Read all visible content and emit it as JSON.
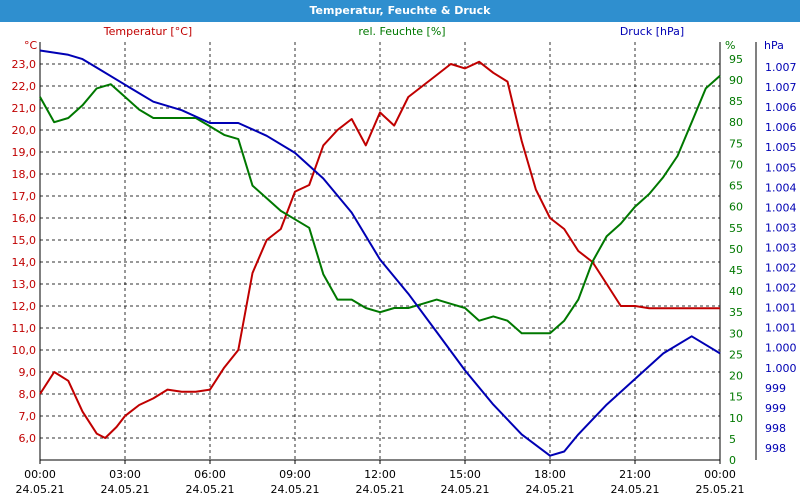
{
  "window": {
    "title": "Temperatur, Feuchte & Druck"
  },
  "chart_data": {
    "type": "line",
    "title": "Temperatur, Feuchte & Druck",
    "x_axis": {
      "ticks": [
        {
          "time": "00:00",
          "date": "24.05.21"
        },
        {
          "time": "03:00",
          "date": "24.05.21"
        },
        {
          "time": "06:00",
          "date": "24.05.21"
        },
        {
          "time": "09:00",
          "date": "24.05.21"
        },
        {
          "time": "12:00",
          "date": "24.05.21"
        },
        {
          "time": "15:00",
          "date": "24.05.21"
        },
        {
          "time": "18:00",
          "date": "24.05.21"
        },
        {
          "time": "21:00",
          "date": "24.05.21"
        },
        {
          "time": "00:00",
          "date": "25.05.21"
        }
      ],
      "range_hours": [
        0,
        24
      ]
    },
    "axes": {
      "temperature": {
        "unit": "°C",
        "label": "Temperatur [°C]",
        "range": [
          5.0,
          24.0
        ],
        "ticks": [
          "6,0",
          "7,0",
          "8,0",
          "9,0",
          "10,0",
          "11,0",
          "12,0",
          "13,0",
          "14,0",
          "15,0",
          "16,0",
          "17,0",
          "18,0",
          "19,0",
          "20,0",
          "21,0",
          "22,0",
          "23,0"
        ]
      },
      "humidity": {
        "unit": "%",
        "label": "rel. Feuchte [%]",
        "range": [
          0,
          99
        ],
        "ticks": [
          "0",
          "5",
          "10",
          "15",
          "20",
          "25",
          "30",
          "35",
          "40",
          "45",
          "50",
          "55",
          "60",
          "65",
          "70",
          "75",
          "80",
          "85",
          "90",
          "95"
        ]
      },
      "pressure": {
        "unit": "hPa",
        "label": "Druck [hPa]",
        "range": [
          997.6,
          1007.4
        ],
        "ticks": [
          "998",
          "998",
          "999",
          "999",
          "1.000",
          "1.000",
          "1.001",
          "1.001",
          "1.002",
          "1.002",
          "1.003",
          "1.003",
          "1.004",
          "1.004",
          "1.005",
          "1.005",
          "1.006",
          "1.006",
          "1.007",
          "1.007"
        ]
      }
    },
    "colors": {
      "temperature": "#c00000",
      "humidity": "#007800",
      "pressure": "#0000b4"
    },
    "grid": true,
    "series": [
      {
        "name": "Temperatur [°C]",
        "axis": "temperature",
        "x": [
          0,
          0.5,
          1,
          1.5,
          2,
          2.3,
          2.7,
          3,
          3.5,
          4,
          4.5,
          5,
          5.5,
          6,
          6.5,
          7,
          7.5,
          8,
          8.5,
          9,
          9.5,
          10,
          10.5,
          11,
          11.5,
          12,
          12.5,
          13,
          13.5,
          14,
          14.5,
          15,
          15.5,
          16,
          16.5,
          17,
          17.5,
          18,
          18.5,
          19,
          19.5,
          20,
          20.5,
          21,
          21.5,
          22,
          22.5,
          23,
          23.5,
          24
        ],
        "y": [
          8.0,
          9.0,
          8.6,
          7.2,
          6.2,
          6.0,
          6.5,
          7.0,
          7.5,
          7.8,
          8.2,
          8.1,
          8.1,
          8.2,
          9.2,
          10.0,
          13.5,
          15.0,
          15.5,
          17.2,
          17.5,
          19.3,
          20.0,
          20.5,
          19.3,
          20.8,
          20.2,
          21.5,
          22.0,
          22.5,
          23.0,
          22.8,
          23.1,
          22.6,
          22.2,
          19.5,
          17.3,
          16.0,
          15.5,
          14.5,
          14.0,
          13.0,
          12.0,
          12.0,
          11.9,
          11.9,
          11.9,
          11.9,
          11.9,
          11.9
        ]
      },
      {
        "name": "rel. Feuchte [%]",
        "axis": "humidity",
        "x": [
          0,
          0.5,
          1,
          1.5,
          2,
          2.5,
          3,
          3.5,
          4,
          4.5,
          5,
          5.5,
          6,
          6.5,
          7,
          7.5,
          8,
          8.5,
          9,
          9.5,
          10,
          10.5,
          11,
          11.5,
          12,
          12.5,
          13,
          13.5,
          14,
          14.5,
          15,
          15.5,
          16,
          16.5,
          17,
          17.5,
          18,
          18.5,
          19,
          19.5,
          20,
          20.5,
          21,
          21.5,
          22,
          22.5,
          23,
          23.5,
          24
        ],
        "y": [
          86,
          80,
          81,
          84,
          88,
          89,
          86,
          83,
          81,
          81,
          81,
          81,
          79,
          77,
          76,
          65,
          62,
          59,
          57,
          55,
          44,
          38,
          38,
          36,
          35,
          36,
          36,
          37,
          38,
          37,
          36,
          33,
          34,
          33,
          30,
          30,
          30,
          33,
          38,
          47,
          53,
          56,
          60,
          63,
          67,
          72,
          80,
          88,
          91
        ]
      },
      {
        "name": "Druck [hPa]",
        "axis": "pressure",
        "x": [
          0,
          1,
          1.5,
          2,
          3,
          4,
          5,
          6,
          7,
          8,
          9,
          10,
          11,
          12,
          13,
          14,
          15,
          16,
          17,
          18,
          18.5,
          19,
          20,
          21,
          22,
          23,
          23.5,
          24
        ],
        "y": [
          1007.2,
          1007.1,
          1007.0,
          1006.8,
          1006.4,
          1006.0,
          1005.8,
          1005.5,
          1005.5,
          1005.2,
          1004.8,
          1004.2,
          1003.4,
          1002.3,
          1001.5,
          1000.6,
          999.7,
          998.9,
          998.2,
          997.7,
          997.8,
          998.2,
          998.9,
          999.5,
          1000.1,
          1000.5,
          1000.3,
          1000.1
        ]
      }
    ]
  }
}
